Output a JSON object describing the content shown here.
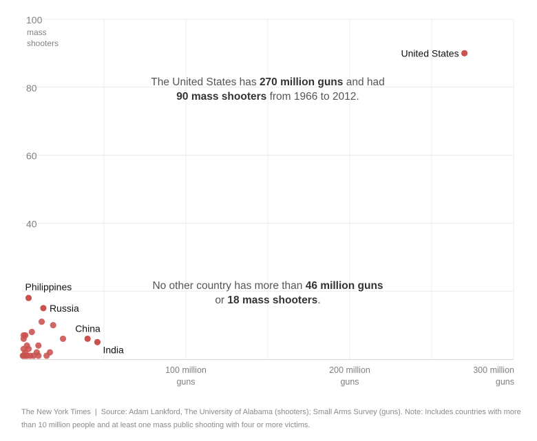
{
  "chart_data": {
    "type": "scatter",
    "xlim": [
      0,
      300
    ],
    "ylim": [
      0,
      100
    ],
    "x_unit": "million guns",
    "y_unit": "mass shooters",
    "grid": true,
    "y_ticks": [
      {
        "value": 100,
        "label": "100",
        "sub": [
          "mass",
          "shooters"
        ]
      },
      {
        "value": 80,
        "label": "80"
      },
      {
        "value": 60,
        "label": "60"
      },
      {
        "value": 40,
        "label": "40"
      }
    ],
    "x_ticks": [
      {
        "value": 100,
        "lines": [
          "100 million",
          "guns"
        ]
      },
      {
        "value": 200,
        "lines": [
          "200 million",
          "guns"
        ]
      },
      {
        "value": 300,
        "lines": [
          "300 million",
          "guns"
        ]
      }
    ],
    "labeled_points": [
      {
        "name": "United States",
        "x": 270,
        "y": 90
      },
      {
        "name": "Philippines",
        "x": 4,
        "y": 18
      },
      {
        "name": "Russia",
        "x": 13,
        "y": 15
      },
      {
        "name": "China",
        "x": 40,
        "y": 6
      },
      {
        "name": "India",
        "x": 46,
        "y": 5
      }
    ],
    "other_points": [
      {
        "x": 1,
        "y": 7
      },
      {
        "x": 1,
        "y": 6
      },
      {
        "x": 2,
        "y": 7
      },
      {
        "x": 6,
        "y": 8
      },
      {
        "x": 12,
        "y": 11
      },
      {
        "x": 19,
        "y": 10
      },
      {
        "x": 25,
        "y": 6
      },
      {
        "x": 3,
        "y": 4
      },
      {
        "x": 10,
        "y": 4
      },
      {
        "x": 1,
        "y": 3
      },
      {
        "x": 2,
        "y": 2
      },
      {
        "x": 4,
        "y": 3
      },
      {
        "x": 9,
        "y": 2
      },
      {
        "x": 17,
        "y": 2
      },
      {
        "x": 1,
        "y": 1
      },
      {
        "x": 3,
        "y": 1
      },
      {
        "x": 5,
        "y": 1
      },
      {
        "x": 10,
        "y": 1
      },
      {
        "x": 15,
        "y": 1
      },
      {
        "x": 0.5,
        "y": 1
      },
      {
        "x": 2,
        "y": 1
      },
      {
        "x": 7,
        "y": 1
      }
    ],
    "annotations": [
      {
        "x": 150,
        "y": 80,
        "lines": [
          [
            {
              "t": "The United States has ",
              "b": false
            },
            {
              "t": "270 million guns",
              "b": true
            },
            {
              "t": " and had",
              "b": false
            }
          ],
          [
            {
              "t": "90 mass shooters",
              "b": true
            },
            {
              "t": " from 1966 to 2012.",
              "b": false
            }
          ]
        ]
      },
      {
        "x": 150,
        "y": 20,
        "lines": [
          [
            {
              "t": "No other country has more than ",
              "b": false
            },
            {
              "t": "46 million guns",
              "b": true
            }
          ],
          [
            {
              "t": "or ",
              "b": false
            },
            {
              "t": "18 mass shooters",
              "b": true
            },
            {
              "t": ".",
              "b": false
            }
          ]
        ]
      }
    ]
  },
  "colors": {
    "point": "#c9524f",
    "grid": "#ececec",
    "axis": "#d6d6d6",
    "tick_text": "#7f7f7f",
    "label_text": "#111111",
    "annotation_text": "#555555",
    "annotation_bold": "#333333"
  },
  "footer": {
    "publisher": "The New York Times",
    "separator": "|",
    "note": "Source: Adam Lankford, The University of Alabama (shooters); Small Arms Survey (guns). Note: Includes countries with more than 10 million people and at least one mass public shooting with four or more victims."
  }
}
